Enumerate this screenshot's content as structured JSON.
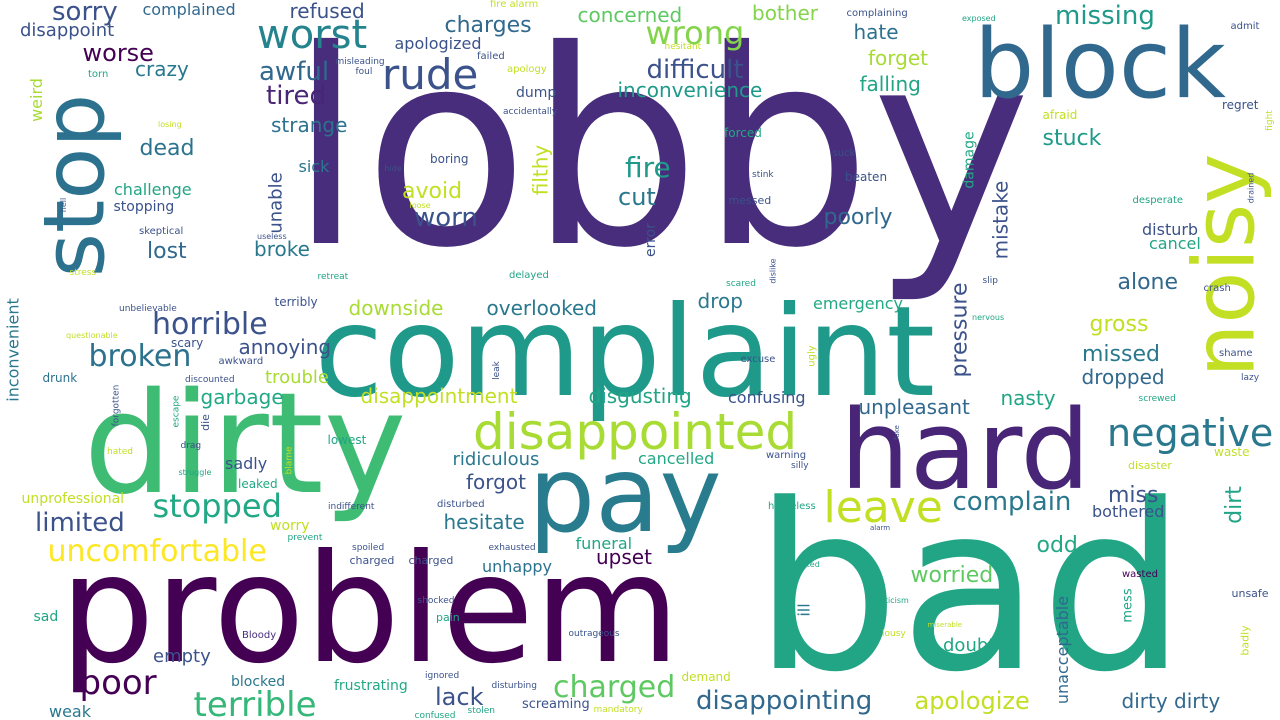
{
  "word_cloud": {
    "words": [
      {
        "text": "lobby",
        "color": "#472d7b"
      },
      {
        "text": "bad",
        "color": "#21a585"
      },
      {
        "text": "problem",
        "color": "#440154"
      },
      {
        "text": "complaint",
        "color": "#1f9a8a"
      },
      {
        "text": "dirty",
        "color": "#3fbc73"
      },
      {
        "text": "block",
        "color": "#31688e"
      },
      {
        "text": "hard",
        "color": "#482576"
      },
      {
        "text": "pay",
        "color": "#297b8e"
      },
      {
        "text": "stop",
        "color": "#2c728e"
      },
      {
        "text": "noisy",
        "color": "#c2df23"
      },
      {
        "text": "disappointed",
        "color": "#a8db34"
      },
      {
        "text": "rude",
        "color": "#3b528b"
      },
      {
        "text": "worst",
        "color": "#25838e"
      },
      {
        "text": "negative",
        "color": "#2a788e"
      },
      {
        "text": "leave",
        "color": "#c2df23"
      },
      {
        "text": "stopped",
        "color": "#22a884"
      },
      {
        "text": "uncomfortable",
        "color": "#fde725"
      },
      {
        "text": "terrible",
        "color": "#35b779"
      },
      {
        "text": "horrible",
        "color": "#3b528b"
      },
      {
        "text": "broken",
        "color": "#2c728e"
      },
      {
        "text": "poor",
        "color": "#440154"
      },
      {
        "text": "wrong",
        "color": "#84d44b"
      },
      {
        "text": "difficult",
        "color": "#3b528b"
      },
      {
        "text": "charged",
        "color": "#5ec962"
      },
      {
        "text": "disappointing",
        "color": "#31688e"
      },
      {
        "text": "complain",
        "color": "#2a788e"
      },
      {
        "text": "limited",
        "color": "#3b528b"
      },
      {
        "text": "sorry",
        "color": "#3b528b"
      },
      {
        "text": "fire",
        "color": "#1f9a8a"
      },
      {
        "text": "worn",
        "color": "#3b528b"
      },
      {
        "text": "awful",
        "color": "#31688e"
      },
      {
        "text": "tired",
        "color": "#482576"
      },
      {
        "text": "apologize",
        "color": "#c2df23"
      },
      {
        "text": "inconvenience",
        "color": "#1f9a8a"
      },
      {
        "text": "missing",
        "color": "#1f9a8a"
      },
      {
        "text": "worse",
        "color": "#440154"
      },
      {
        "text": "crazy",
        "color": "#2a788e"
      },
      {
        "text": "dead",
        "color": "#2c728e"
      },
      {
        "text": "lost",
        "color": "#31688e"
      },
      {
        "text": "cut",
        "color": "#2a788e"
      },
      {
        "text": "avoid",
        "color": "#c2df23"
      },
      {
        "text": "poorly",
        "color": "#31688e"
      },
      {
        "text": "pressure",
        "color": "#3b528b"
      },
      {
        "text": "mistake",
        "color": "#3b528b"
      },
      {
        "text": "stuck",
        "color": "#1f9a8a"
      },
      {
        "text": "alone",
        "color": "#31688e"
      },
      {
        "text": "gross",
        "color": "#c2df23"
      },
      {
        "text": "missed",
        "color": "#2a788e"
      },
      {
        "text": "dropped",
        "color": "#31688e"
      },
      {
        "text": "nasty",
        "color": "#21a585"
      },
      {
        "text": "unpleasant",
        "color": "#31688e"
      },
      {
        "text": "miss",
        "color": "#3b528b"
      },
      {
        "text": "bothered",
        "color": "#3b528b"
      },
      {
        "text": "dirt",
        "color": "#21a585"
      },
      {
        "text": "odd",
        "color": "#22a884"
      },
      {
        "text": "worried",
        "color": "#5ec962"
      },
      {
        "text": "doubt",
        "color": "#21a585"
      },
      {
        "text": "dirty dirty",
        "color": "#31688e"
      },
      {
        "text": "unacceptable",
        "color": "#31688e"
      },
      {
        "text": "filthy",
        "color": "#c2df23"
      },
      {
        "text": "charges",
        "color": "#31688e"
      },
      {
        "text": "concerned",
        "color": "#5ec962"
      },
      {
        "text": "bother",
        "color": "#84d44b"
      },
      {
        "text": "hate",
        "color": "#2c728e"
      },
      {
        "text": "forget",
        "color": "#a8db34"
      },
      {
        "text": "falling",
        "color": "#21a585"
      },
      {
        "text": "overlooked",
        "color": "#2a788e"
      },
      {
        "text": "emergency",
        "color": "#22a884"
      },
      {
        "text": "drop",
        "color": "#2a788e"
      },
      {
        "text": "downside",
        "color": "#a8db34"
      },
      {
        "text": "annoying",
        "color": "#3b528b"
      },
      {
        "text": "trouble",
        "color": "#a8db34"
      },
      {
        "text": "disappointment",
        "color": "#c2df23"
      },
      {
        "text": "disgusting",
        "color": "#21a585"
      },
      {
        "text": "confusing",
        "color": "#3b528b"
      },
      {
        "text": "garbage",
        "color": "#22a884"
      },
      {
        "text": "sadly",
        "color": "#3b528b"
      },
      {
        "text": "ridiculous",
        "color": "#2a788e"
      },
      {
        "text": "cancelled",
        "color": "#22a884"
      },
      {
        "text": "forgot",
        "color": "#3b528b"
      },
      {
        "text": "hesitate",
        "color": "#2a788e"
      },
      {
        "text": "upset",
        "color": "#440154"
      },
      {
        "text": "funeral",
        "color": "#21a585"
      },
      {
        "text": "unhappy",
        "color": "#2c728e"
      },
      {
        "text": "empty",
        "color": "#3b528b"
      },
      {
        "text": "lack",
        "color": "#3b528b"
      },
      {
        "text": "blocked",
        "color": "#2a788e"
      },
      {
        "text": "frustrating",
        "color": "#22a884"
      },
      {
        "text": "weak",
        "color": "#2a788e"
      },
      {
        "text": "screaming",
        "color": "#3b528b"
      },
      {
        "text": "strange",
        "color": "#2c728e"
      },
      {
        "text": "refused",
        "color": "#3b528b"
      },
      {
        "text": "apologized",
        "color": "#3b528b"
      },
      {
        "text": "complained",
        "color": "#31688e"
      },
      {
        "text": "disappoint",
        "color": "#3b528b"
      },
      {
        "text": "broke",
        "color": "#2a788e"
      },
      {
        "text": "challenge",
        "color": "#21a585"
      },
      {
        "text": "stopping",
        "color": "#3b528b"
      },
      {
        "text": "unable",
        "color": "#3b528b"
      },
      {
        "text": "sick",
        "color": "#2a788e"
      },
      {
        "text": "boring",
        "color": "#3b528b"
      },
      {
        "text": "dump",
        "color": "#3b528b"
      },
      {
        "text": "error",
        "color": "#3b528b"
      },
      {
        "text": "forced",
        "color": "#22a884"
      },
      {
        "text": "beaten",
        "color": "#3b528b"
      },
      {
        "text": "suck",
        "color": "#3b528b"
      },
      {
        "text": "damage",
        "color": "#22a884"
      },
      {
        "text": "disturb",
        "color": "#3b528b"
      },
      {
        "text": "cancel",
        "color": "#21a585"
      },
      {
        "text": "regret",
        "color": "#3b528b"
      },
      {
        "text": "admit",
        "color": "#3b528b"
      },
      {
        "text": "afraid",
        "color": "#c2df23"
      },
      {
        "text": "crash",
        "color": "#3b528b"
      },
      {
        "text": "shame",
        "color": "#3b528b"
      },
      {
        "text": "waste",
        "color": "#c2df23"
      },
      {
        "text": "unsafe",
        "color": "#3b528b"
      },
      {
        "text": "badly",
        "color": "#c2df23"
      },
      {
        "text": "wasted",
        "color": "#440154"
      },
      {
        "text": "mess",
        "color": "#21a585"
      },
      {
        "text": "ill",
        "color": "#2a788e"
      },
      {
        "text": "inconvenient",
        "color": "#2a788e"
      },
      {
        "text": "weird",
        "color": "#a8db34"
      },
      {
        "text": "unprofessional",
        "color": "#c2df23"
      },
      {
        "text": "drunk",
        "color": "#2c728e"
      },
      {
        "text": "sad",
        "color": "#21a585"
      },
      {
        "text": "scary",
        "color": "#3b528b"
      },
      {
        "text": "awkward",
        "color": "#3b528b"
      },
      {
        "text": "worry",
        "color": "#c2df23"
      },
      {
        "text": "leaked",
        "color": "#22a884"
      },
      {
        "text": "lowest",
        "color": "#21a585"
      },
      {
        "text": "charged",
        "color": "#3b528b"
      },
      {
        "text": "charged",
        "color": "#3b528b"
      },
      {
        "text": "pain",
        "color": "#21a585"
      },
      {
        "text": "demand",
        "color": "#c2df23"
      },
      {
        "text": "failed",
        "color": "#3b528b"
      },
      {
        "text": "delayed",
        "color": "#21a585"
      },
      {
        "text": "terribly",
        "color": "#3b528b"
      },
      {
        "text": "skeptical",
        "color": "#3b528b"
      },
      {
        "text": "torn",
        "color": "#21a585"
      },
      {
        "text": "warning",
        "color": "#3b528b"
      },
      {
        "text": "disturbed",
        "color": "#3b528b"
      },
      {
        "text": "exhausted",
        "color": "#3b528b"
      },
      {
        "text": "indifferent",
        "color": "#3b528b"
      },
      {
        "text": "homeless",
        "color": "#21a585"
      },
      {
        "text": "prevent",
        "color": "#21a585"
      },
      {
        "text": "spoiled",
        "color": "#3b528b"
      },
      {
        "text": "shocked",
        "color": "#3b528b"
      },
      {
        "text": "outrageous",
        "color": "#3b528b"
      },
      {
        "text": "confused",
        "color": "#21a585"
      },
      {
        "text": "stolen",
        "color": "#21a585"
      },
      {
        "text": "ignored",
        "color": "#3b528b"
      },
      {
        "text": "disturbing",
        "color": "#3b528b"
      },
      {
        "text": "mandatory",
        "color": "#c2df23"
      },
      {
        "text": "frustrated",
        "color": "#21a585"
      },
      {
        "text": "criticism",
        "color": "#21a585"
      },
      {
        "text": "lousy",
        "color": "#c2df23"
      },
      {
        "text": "miserable",
        "color": "#c2df23"
      },
      {
        "text": "Bloody",
        "color": "#472d7b"
      },
      {
        "text": "excuse",
        "color": "#3b528b"
      },
      {
        "text": "nervous",
        "color": "#21a585"
      },
      {
        "text": "slip",
        "color": "#3b528b"
      },
      {
        "text": "ugly",
        "color": "#c2df23"
      },
      {
        "text": "silly",
        "color": "#3b528b"
      },
      {
        "text": "disaster",
        "color": "#c2df23"
      },
      {
        "text": "screwed",
        "color": "#21a585"
      },
      {
        "text": "lazy",
        "color": "#3b528b"
      },
      {
        "text": "desperate",
        "color": "#21a585"
      },
      {
        "text": "fight",
        "color": "#c2df23"
      },
      {
        "text": "drained",
        "color": "#3b528b"
      },
      {
        "text": "stink",
        "color": "#3b528b"
      },
      {
        "text": "messed",
        "color": "#3b528b"
      },
      {
        "text": "scared",
        "color": "#21a585"
      },
      {
        "text": "dislike",
        "color": "#3b528b"
      },
      {
        "text": "accidentally",
        "color": "#3b528b"
      },
      {
        "text": "apology",
        "color": "#c2df23"
      },
      {
        "text": "hesitant",
        "color": "#c2df23"
      },
      {
        "text": "misleading",
        "color": "#3b528b"
      },
      {
        "text": "foul",
        "color": "#3b528b"
      },
      {
        "text": "fire alarm",
        "color": "#c2df23"
      },
      {
        "text": "complaining",
        "color": "#3b528b"
      },
      {
        "text": "exposed",
        "color": "#21a585"
      },
      {
        "text": "losing",
        "color": "#c2df23"
      },
      {
        "text": "hide",
        "color": "#3b528b"
      },
      {
        "text": "loose",
        "color": "#c2df23"
      },
      {
        "text": "useless",
        "color": "#3b528b"
      },
      {
        "text": "hell",
        "color": "#3b528b"
      },
      {
        "text": "stress",
        "color": "#c2df23"
      },
      {
        "text": "retreat",
        "color": "#21a585"
      },
      {
        "text": "unbelievable",
        "color": "#3b528b"
      },
      {
        "text": "questionable",
        "color": "#c2df23"
      },
      {
        "text": "discounted",
        "color": "#3b528b"
      },
      {
        "text": "forgotten",
        "color": "#3b528b"
      },
      {
        "text": "escape",
        "color": "#21a585"
      },
      {
        "text": "die",
        "color": "#3b528b"
      },
      {
        "text": "drag",
        "color": "#3b528b"
      },
      {
        "text": "hated",
        "color": "#c2df23"
      },
      {
        "text": "struggle",
        "color": "#21a585"
      },
      {
        "text": "blame",
        "color": "#c2df23"
      },
      {
        "text": "leak",
        "color": "#3b528b"
      },
      {
        "text": "fake",
        "color": "#3b528b"
      },
      {
        "text": "alarm",
        "color": "#3b528b"
      }
    ]
  }
}
